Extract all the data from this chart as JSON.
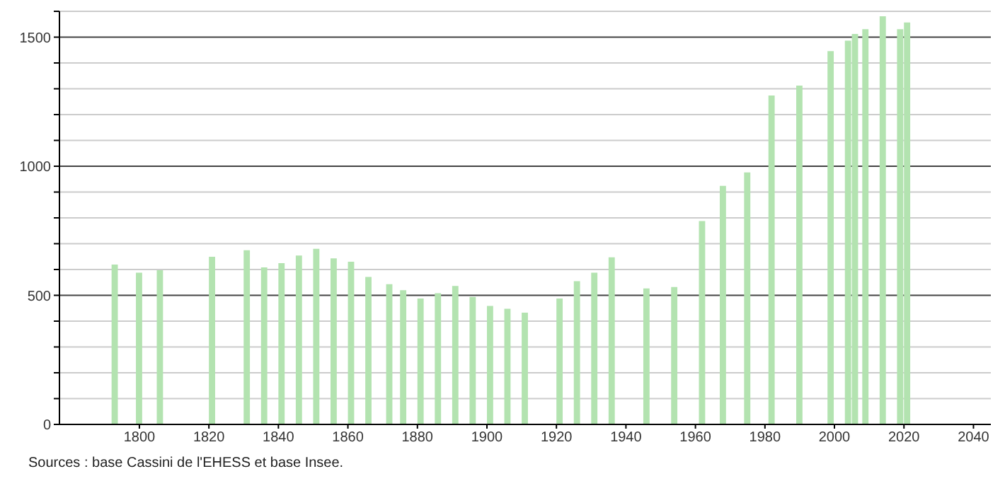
{
  "chart_data": {
    "type": "bar",
    "x": [
      1793,
      1800,
      1806,
      1821,
      1831,
      1836,
      1841,
      1846,
      1851,
      1856,
      1861,
      1866,
      1872,
      1876,
      1881,
      1886,
      1891,
      1896,
      1901,
      1906,
      1911,
      1921,
      1926,
      1931,
      1936,
      1946,
      1954,
      1962,
      1968,
      1975,
      1982,
      1990,
      1999,
      2004,
      2006,
      2009,
      2014,
      2019,
      2021
    ],
    "values": [
      619,
      588,
      597,
      649,
      675,
      608,
      625,
      654,
      680,
      643,
      630,
      571,
      543,
      520,
      488,
      508,
      536,
      494,
      459,
      448,
      433,
      488,
      555,
      588,
      647,
      527,
      532,
      788,
      924,
      976,
      1274,
      1312,
      1446,
      1486,
      1512,
      1531,
      1581,
      1531,
      1557
    ],
    "color": "#b3e3b0",
    "xlim": [
      1777,
      2045
    ],
    "xticks": [
      1800,
      1820,
      1840,
      1860,
      1880,
      1900,
      1920,
      1940,
      1960,
      1980,
      2000,
      2020,
      2040
    ],
    "ylim": [
      0,
      1600
    ],
    "yticks": [
      0,
      {
        "value": 100,
        "label": null
      },
      {
        "value": 200,
        "label": null
      },
      {
        "value": 300,
        "label": null
      },
      {
        "value": 400,
        "label": null
      },
      500,
      {
        "value": 600,
        "label": null
      },
      {
        "value": 700,
        "label": null
      },
      {
        "value": 800,
        "label": null
      },
      {
        "value": 900,
        "label": null
      },
      1000,
      {
        "value": 1100,
        "label": null
      },
      {
        "value": 1200,
        "label": null
      },
      {
        "value": 1300,
        "label": null
      },
      {
        "value": 1400,
        "label": null
      },
      1500,
      {
        "value": 1600,
        "label": null
      }
    ],
    "grid": "y",
    "annotations": [
      "Sources : base Cassini de l'EHESS et base Insee."
    ]
  }
}
